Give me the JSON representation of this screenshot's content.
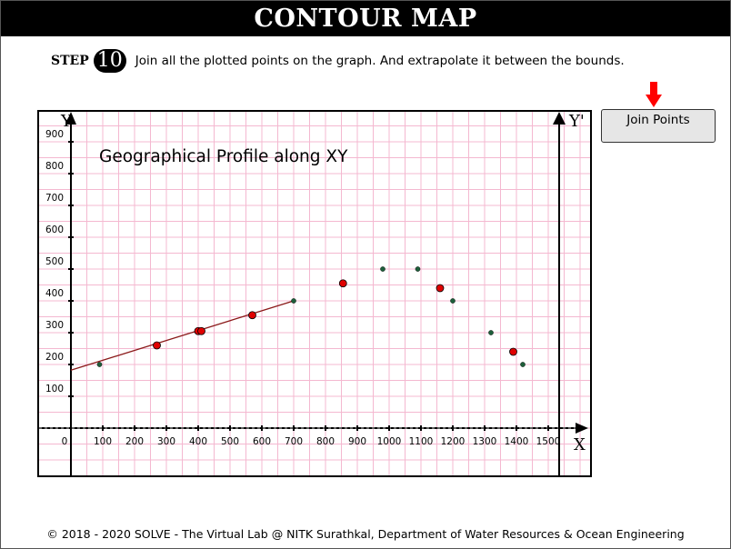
{
  "header": {
    "title": "CONTOUR MAP"
  },
  "step": {
    "label": "STEP",
    "number": "10",
    "instruction": "Join all the plotted points on the graph. And extrapolate it between the bounds."
  },
  "button": {
    "label": "Join Points"
  },
  "footer": {
    "text": "© 2018 - 2020 SOLVE - The Virtual Lab @ NITK Surathkal, Department of Water Resources & Ocean Engineering"
  },
  "colors": {
    "grid": "#f4b8d0",
    "red_point": "#e00000",
    "green_point": "#1e5e3a",
    "line": "#8b1a1a",
    "arrow": "#ff0000"
  },
  "chart_data": {
    "type": "scatter",
    "title": "Geographical Profile along XY",
    "xlabel": "X",
    "ylabel": "Y",
    "y2label": "Y'",
    "origin_label": "0",
    "xlim": [
      0,
      1500
    ],
    "ylim": [
      0,
      900
    ],
    "x_ticks": [
      "100",
      "200",
      "300",
      "400",
      "500",
      "600",
      "700",
      "800",
      "900",
      "1000",
      "1100",
      "1200",
      "1300",
      "1400",
      "1500"
    ],
    "y_ticks": [
      "100",
      "200",
      "300",
      "400",
      "500",
      "600",
      "700",
      "800",
      "900"
    ],
    "grid": true,
    "series": [
      {
        "color": "green",
        "points": [
          [
            90,
            200
          ],
          [
            700,
            400
          ],
          [
            980,
            500
          ],
          [
            1090,
            500
          ],
          [
            1200,
            400
          ],
          [
            1320,
            300
          ],
          [
            1420,
            200
          ]
        ]
      },
      {
        "color": "red",
        "points": [
          [
            270,
            260
          ],
          [
            400,
            305
          ],
          [
            410,
            305
          ],
          [
            570,
            355
          ],
          [
            855,
            455
          ],
          [
            1160,
            440
          ],
          [
            1390,
            240
          ]
        ]
      }
    ],
    "fit_line": {
      "points": [
        [
          0,
          182
        ],
        [
          700,
          400
        ]
      ]
    }
  }
}
